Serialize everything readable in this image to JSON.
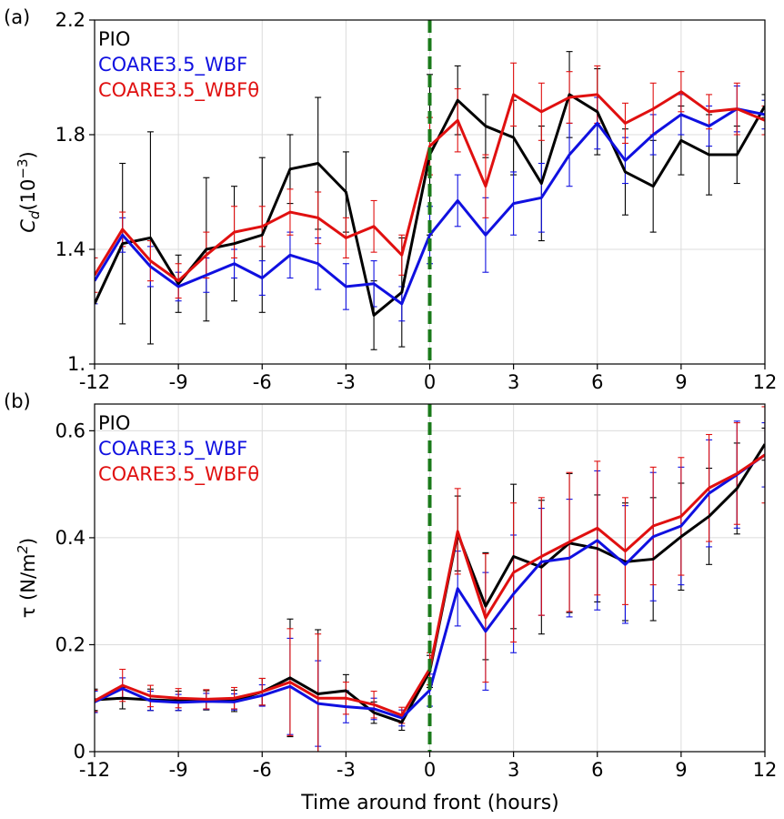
{
  "xlabel": "Time around front (hours)",
  "colors": {
    "PIO": "#000000",
    "COARE3.5_WBF": "#1010e0",
    "COARE3.5_WBFθ": "#e01010",
    "front_line": "#1a7a1a"
  },
  "chart_data": [
    {
      "panel_label": "(a)",
      "type": "line",
      "xlim": [
        -12,
        12
      ],
      "ylim": [
        1.0,
        2.2
      ],
      "x_ticks": [
        "-12",
        "-9",
        "-6",
        "-3",
        "0",
        "3",
        "6",
        "9",
        "12"
      ],
      "y_ticks": [
        "1.",
        "1.4",
        "1.8",
        "2.2"
      ],
      "y_tick_values": [
        1.0,
        1.4,
        1.8,
        2.2
      ],
      "ylabel_main": "C",
      "ylabel_sub": "d",
      "ylabel_rest": "(10",
      "ylabel_sup": "−3",
      "ylabel_end": ")",
      "front_x": 0,
      "grid": true,
      "legend_placement": "top-left",
      "x": [
        -12,
        -11,
        -10,
        -9,
        -8,
        -7,
        -6,
        -5,
        -4,
        -3,
        -2,
        -1,
        0,
        1,
        2,
        3,
        4,
        5,
        6,
        7,
        8,
        9,
        10,
        11,
        12
      ],
      "series": [
        {
          "name": "PIO",
          "color": "#000000",
          "values": [
            1.21,
            1.42,
            1.44,
            1.28,
            1.4,
            1.42,
            1.45,
            1.68,
            1.7,
            1.6,
            1.17,
            1.25,
            1.73,
            1.92,
            1.83,
            1.79,
            1.63,
            1.94,
            1.88,
            1.67,
            1.62,
            1.78,
            1.73,
            1.73,
            1.9
          ],
          "errors": [
            0.0,
            0.28,
            0.37,
            0.1,
            0.25,
            0.2,
            0.27,
            0.12,
            0.23,
            0.14,
            0.12,
            0.19,
            0.28,
            0.12,
            0.11,
            0.13,
            0.2,
            0.15,
            0.15,
            0.15,
            0.16,
            0.12,
            0.14,
            0.1,
            0.04
          ]
        },
        {
          "name": "COARE3.5_WBF",
          "color": "#1010e0",
          "values": [
            1.29,
            1.45,
            1.34,
            1.27,
            1.31,
            1.35,
            1.3,
            1.38,
            1.35,
            1.27,
            1.28,
            1.21,
            1.45,
            1.57,
            1.45,
            1.56,
            1.58,
            1.73,
            1.84,
            1.71,
            1.8,
            1.87,
            1.83,
            1.89,
            1.87
          ],
          "errors": [
            0.08,
            0.06,
            0.07,
            0.05,
            0.06,
            0.05,
            0.06,
            0.08,
            0.09,
            0.08,
            0.08,
            0.06,
            0.1,
            0.09,
            0.13,
            0.11,
            0.12,
            0.11,
            0.09,
            0.08,
            0.07,
            0.07,
            0.07,
            0.08,
            0.05
          ]
        },
        {
          "name": "COARE3.5_WBFθ",
          "color": "#e01010",
          "values": [
            1.31,
            1.47,
            1.36,
            1.29,
            1.38,
            1.46,
            1.48,
            1.53,
            1.51,
            1.44,
            1.48,
            1.38,
            1.76,
            1.85,
            1.62,
            1.94,
            1.88,
            1.93,
            1.94,
            1.84,
            1.89,
            1.95,
            1.88,
            1.89,
            1.85
          ],
          "errors": [
            0.06,
            0.06,
            0.07,
            0.06,
            0.08,
            0.09,
            0.07,
            0.08,
            0.09,
            0.07,
            0.09,
            0.07,
            0.1,
            0.11,
            0.11,
            0.11,
            0.1,
            0.09,
            0.1,
            0.07,
            0.09,
            0.07,
            0.06,
            0.09,
            0.05
          ]
        }
      ]
    },
    {
      "panel_label": "(b)",
      "type": "line",
      "xlim": [
        -12,
        12
      ],
      "ylim": [
        0,
        0.65
      ],
      "x_ticks": [
        "-12",
        "-9",
        "-6",
        "-3",
        "0",
        "3",
        "6",
        "9",
        "12"
      ],
      "y_ticks": [
        "0",
        "0.2",
        "0.4",
        "0.6"
      ],
      "y_tick_values": [
        0,
        0.2,
        0.4,
        0.6
      ],
      "ylabel_main": "τ (N/m",
      "ylabel_sup": "2",
      "ylabel_end": ")",
      "front_x": 0,
      "grid": true,
      "legend_placement": "top-left",
      "x": [
        -12,
        -11,
        -10,
        -9,
        -8,
        -7,
        -6,
        -5,
        -4,
        -3,
        -2,
        -1,
        0,
        1,
        2,
        3,
        4,
        5,
        6,
        7,
        8,
        9,
        10,
        11,
        12
      ],
      "series": [
        {
          "name": "PIO",
          "color": "#000000",
          "values": [
            0.097,
            0.1,
            0.097,
            0.095,
            0.096,
            0.095,
            0.112,
            0.138,
            0.108,
            0.114,
            0.073,
            0.055,
            0.15,
            0.408,
            0.272,
            0.365,
            0.345,
            0.39,
            0.38,
            0.355,
            0.36,
            0.402,
            0.44,
            0.492,
            0.575
          ],
          "errors": [
            0.02,
            0.02,
            0.02,
            0.018,
            0.018,
            0.02,
            0.025,
            0.11,
            0.12,
            0.03,
            0.02,
            0.015,
            0.03,
            0.07,
            0.1,
            0.135,
            0.125,
            0.13,
            0.1,
            0.11,
            0.115,
            0.1,
            0.09,
            0.085,
            0.03
          ]
        },
        {
          "name": "COARE3.5_WBF",
          "color": "#1010e0",
          "values": [
            0.093,
            0.118,
            0.095,
            0.092,
            0.094,
            0.093,
            0.105,
            0.122,
            0.09,
            0.084,
            0.08,
            0.063,
            0.115,
            0.305,
            0.225,
            0.295,
            0.355,
            0.362,
            0.395,
            0.35,
            0.402,
            0.422,
            0.483,
            0.518,
            0.555
          ],
          "errors": [
            0.02,
            0.02,
            0.018,
            0.015,
            0.015,
            0.015,
            0.02,
            0.09,
            0.08,
            0.03,
            0.02,
            0.015,
            0.03,
            0.07,
            0.11,
            0.11,
            0.1,
            0.11,
            0.13,
            0.11,
            0.12,
            0.11,
            0.1,
            0.1,
            0.06
          ]
        },
        {
          "name": "COARE3.5_WBFθ",
          "color": "#e01010",
          "values": [
            0.095,
            0.124,
            0.104,
            0.1,
            0.098,
            0.1,
            0.112,
            0.13,
            0.1,
            0.1,
            0.088,
            0.068,
            0.155,
            0.412,
            0.25,
            0.335,
            0.365,
            0.392,
            0.418,
            0.375,
            0.422,
            0.44,
            0.493,
            0.52,
            0.555
          ],
          "errors": [
            0.02,
            0.03,
            0.02,
            0.018,
            0.018,
            0.02,
            0.025,
            0.1,
            0.12,
            0.03,
            0.025,
            0.015,
            0.03,
            0.08,
            0.12,
            0.13,
            0.11,
            0.13,
            0.125,
            0.1,
            0.11,
            0.11,
            0.1,
            0.095,
            0.09
          ]
        }
      ]
    }
  ]
}
